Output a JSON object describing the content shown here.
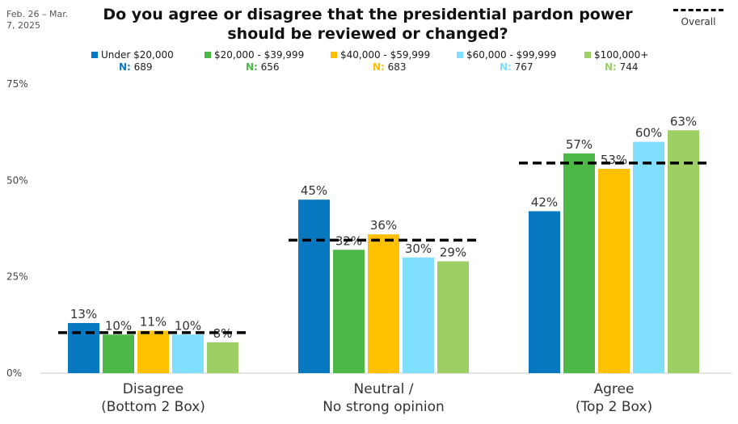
{
  "date_note": "Feb. 26 – Mar. 7, 2025",
  "title": "Do you agree or disagree that the presidential pardon power should be reviewed or changed?",
  "overall_legend_label": "Overall",
  "legend": [
    {
      "name": "Under $20,000",
      "n_label": "N:",
      "n_value": "689",
      "color": "#0878c0"
    },
    {
      "name": "$20,000 - $39,999",
      "n_label": "N:",
      "n_value": "656",
      "color": "#4db848"
    },
    {
      "name": "$40,000 - $59,999",
      "n_label": "N:",
      "n_value": "683",
      "color": "#ffc000"
    },
    {
      "name": "$60,000 - $99,999",
      "n_label": "N:",
      "n_value": "767",
      "color": "#80dfff"
    },
    {
      "name": "$100,000+",
      "n_label": "N:",
      "n_value": "744",
      "color": "#9ecf64"
    }
  ],
  "chart_data": {
    "type": "bar",
    "categories": [
      [
        "Disagree",
        "(Bottom 2 Box)"
      ],
      [
        "Neutral /",
        "No strong opinion"
      ],
      [
        "Agree",
        "(Top 2 Box)"
      ]
    ],
    "series": [
      {
        "name": "Under $20,000",
        "values": [
          13,
          45,
          42
        ],
        "labels": [
          "13%",
          "45%",
          "42%"
        ],
        "color": "#0878c0"
      },
      {
        "name": "$20,000 - $39,999",
        "values": [
          10,
          32,
          57
        ],
        "labels": [
          "10%",
          "32%",
          "57%"
        ],
        "color": "#4db848"
      },
      {
        "name": "$40,000 - $59,999",
        "values": [
          11,
          36,
          53
        ],
        "labels": [
          "11%",
          "36%",
          "53%"
        ],
        "color": "#ffc000"
      },
      {
        "name": "$60,000 - $99,999",
        "values": [
          10,
          30,
          60
        ],
        "labels": [
          "10%",
          "30%",
          "60%"
        ],
        "color": "#80dfff"
      },
      {
        "name": "$100,000+",
        "values": [
          8,
          29,
          63
        ],
        "labels": [
          "8%",
          "29%",
          "63%"
        ],
        "color": "#9ecf64"
      }
    ],
    "overall": {
      "name": "Overall",
      "values": [
        10.5,
        34.5,
        54.5
      ]
    },
    "yticks": [
      {
        "value": 0,
        "label": "0%"
      },
      {
        "value": 25,
        "label": "25%"
      },
      {
        "value": 50,
        "label": "50%"
      },
      {
        "value": 75,
        "label": "75%"
      }
    ],
    "ylim": [
      0,
      75
    ],
    "grid": false,
    "legend_position": "top"
  }
}
